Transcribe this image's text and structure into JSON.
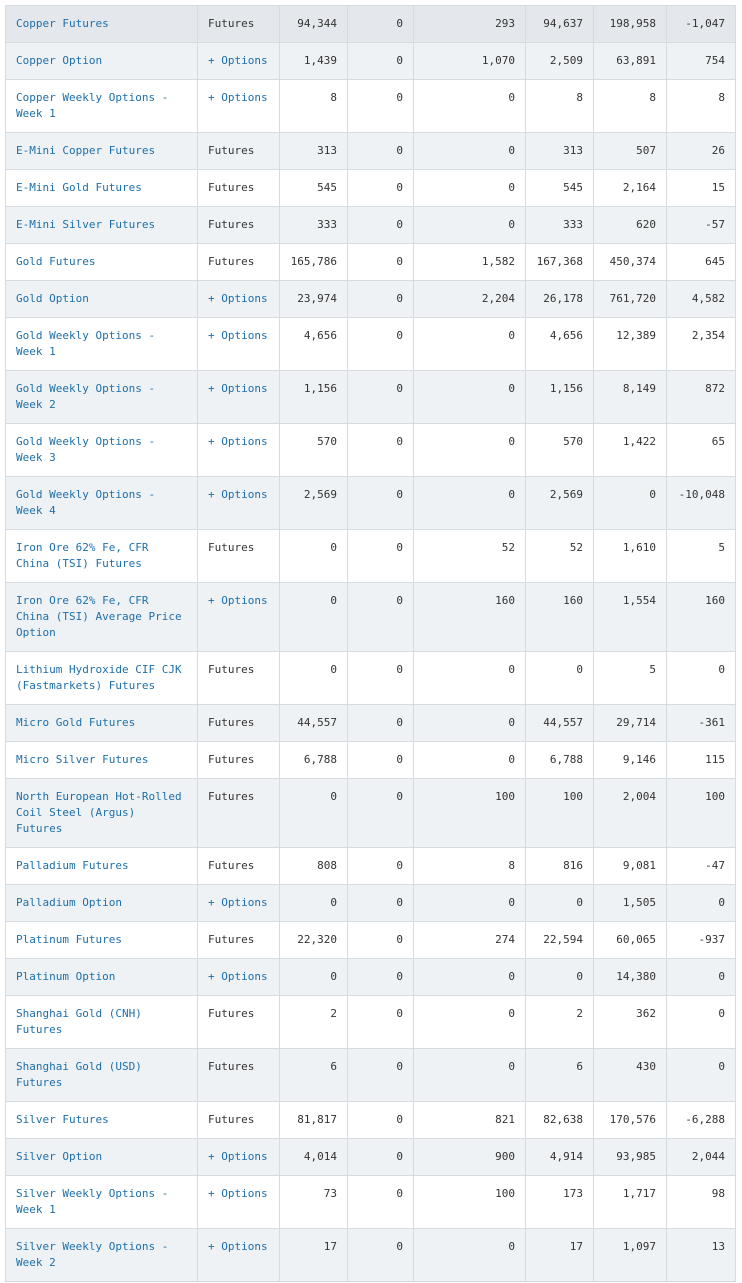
{
  "table": {
    "rows": [
      {
        "name": "Copper Futures",
        "type": "Futures",
        "c1": "94,344",
        "c2": "0",
        "c3": "293",
        "c4": "94,637",
        "c5": "198,958",
        "c6": "-1,047"
      },
      {
        "name": "Copper Option",
        "type": "+ Options",
        "c1": "1,439",
        "c2": "0",
        "c3": "1,070",
        "c4": "2,509",
        "c5": "63,891",
        "c6": "754"
      },
      {
        "name": "Copper Weekly Options - Week 1",
        "type": "+ Options",
        "c1": "8",
        "c2": "0",
        "c3": "0",
        "c4": "8",
        "c5": "8",
        "c6": "8"
      },
      {
        "name": "E-Mini Copper Futures",
        "type": "Futures",
        "c1": "313",
        "c2": "0",
        "c3": "0",
        "c4": "313",
        "c5": "507",
        "c6": "26"
      },
      {
        "name": "E-Mini Gold Futures",
        "type": "Futures",
        "c1": "545",
        "c2": "0",
        "c3": "0",
        "c4": "545",
        "c5": "2,164",
        "c6": "15"
      },
      {
        "name": "E-Mini Silver Futures",
        "type": "Futures",
        "c1": "333",
        "c2": "0",
        "c3": "0",
        "c4": "333",
        "c5": "620",
        "c6": "-57"
      },
      {
        "name": "Gold Futures",
        "type": "Futures",
        "c1": "165,786",
        "c2": "0",
        "c3": "1,582",
        "c4": "167,368",
        "c5": "450,374",
        "c6": "645"
      },
      {
        "name": "Gold Option",
        "type": "+ Options",
        "c1": "23,974",
        "c2": "0",
        "c3": "2,204",
        "c4": "26,178",
        "c5": "761,720",
        "c6": "4,582"
      },
      {
        "name": "Gold Weekly Options - Week 1",
        "type": "+ Options",
        "c1": "4,656",
        "c2": "0",
        "c3": "0",
        "c4": "4,656",
        "c5": "12,389",
        "c6": "2,354"
      },
      {
        "name": "Gold Weekly Options - Week 2",
        "type": "+ Options",
        "c1": "1,156",
        "c2": "0",
        "c3": "0",
        "c4": "1,156",
        "c5": "8,149",
        "c6": "872"
      },
      {
        "name": "Gold Weekly Options - Week 3",
        "type": "+ Options",
        "c1": "570",
        "c2": "0",
        "c3": "0",
        "c4": "570",
        "c5": "1,422",
        "c6": "65"
      },
      {
        "name": "Gold Weekly Options - Week 4",
        "type": "+ Options",
        "c1": "2,569",
        "c2": "0",
        "c3": "0",
        "c4": "2,569",
        "c5": "0",
        "c6": "-10,048"
      },
      {
        "name": "Iron Ore 62% Fe, CFR China (TSI) Futures",
        "type": "Futures",
        "c1": "0",
        "c2": "0",
        "c3": "52",
        "c4": "52",
        "c5": "1,610",
        "c6": "5"
      },
      {
        "name": "Iron Ore 62% Fe, CFR China (TSI) Average Price Option",
        "type": "+ Options",
        "c1": "0",
        "c2": "0",
        "c3": "160",
        "c4": "160",
        "c5": "1,554",
        "c6": "160"
      },
      {
        "name": "Lithium Hydroxide CIF CJK (Fastmarkets) Futures",
        "type": "Futures",
        "c1": "0",
        "c2": "0",
        "c3": "0",
        "c4": "0",
        "c5": "5",
        "c6": "0"
      },
      {
        "name": "Micro Gold Futures",
        "type": "Futures",
        "c1": "44,557",
        "c2": "0",
        "c3": "0",
        "c4": "44,557",
        "c5": "29,714",
        "c6": "-361"
      },
      {
        "name": "Micro Silver Futures",
        "type": "Futures",
        "c1": "6,788",
        "c2": "0",
        "c3": "0",
        "c4": "6,788",
        "c5": "9,146",
        "c6": "115"
      },
      {
        "name": "North European Hot-Rolled Coil Steel (Argus) Futures",
        "type": "Futures",
        "c1": "0",
        "c2": "0",
        "c3": "100",
        "c4": "100",
        "c5": "2,004",
        "c6": "100"
      },
      {
        "name": "Palladium Futures",
        "type": "Futures",
        "c1": "808",
        "c2": "0",
        "c3": "8",
        "c4": "816",
        "c5": "9,081",
        "c6": "-47"
      },
      {
        "name": "Palladium Option",
        "type": "+ Options",
        "c1": "0",
        "c2": "0",
        "c3": "0",
        "c4": "0",
        "c5": "1,505",
        "c6": "0"
      },
      {
        "name": "Platinum Futures",
        "type": "Futures",
        "c1": "22,320",
        "c2": "0",
        "c3": "274",
        "c4": "22,594",
        "c5": "60,065",
        "c6": "-937"
      },
      {
        "name": "Platinum Option",
        "type": "+ Options",
        "c1": "0",
        "c2": "0",
        "c3": "0",
        "c4": "0",
        "c5": "14,380",
        "c6": "0"
      },
      {
        "name": "Shanghai Gold (CNH) Futures",
        "type": "Futures",
        "c1": "2",
        "c2": "0",
        "c3": "0",
        "c4": "2",
        "c5": "362",
        "c6": "0"
      },
      {
        "name": "Shanghai Gold (USD) Futures",
        "type": "Futures",
        "c1": "6",
        "c2": "0",
        "c3": "0",
        "c4": "6",
        "c5": "430",
        "c6": "0"
      },
      {
        "name": "Silver Futures",
        "type": "Futures",
        "c1": "81,817",
        "c2": "0",
        "c3": "821",
        "c4": "82,638",
        "c5": "170,576",
        "c6": "-6,288"
      },
      {
        "name": "Silver Option",
        "type": "+ Options",
        "c1": "4,014",
        "c2": "0",
        "c3": "900",
        "c4": "4,914",
        "c5": "93,985",
        "c6": "2,044"
      },
      {
        "name": "Silver Weekly Options - Week 1",
        "type": "+ Options",
        "c1": "73",
        "c2": "0",
        "c3": "100",
        "c4": "173",
        "c5": "1,717",
        "c6": "98"
      },
      {
        "name": "Silver Weekly Options - Week 2",
        "type": "+ Options",
        "c1": "17",
        "c2": "0",
        "c3": "0",
        "c4": "17",
        "c5": "1,097",
        "c6": "13"
      }
    ]
  },
  "colors": {
    "link": "#1e6fa8",
    "row_alt": "#eef2f5",
    "border": "#d6dbe1"
  }
}
